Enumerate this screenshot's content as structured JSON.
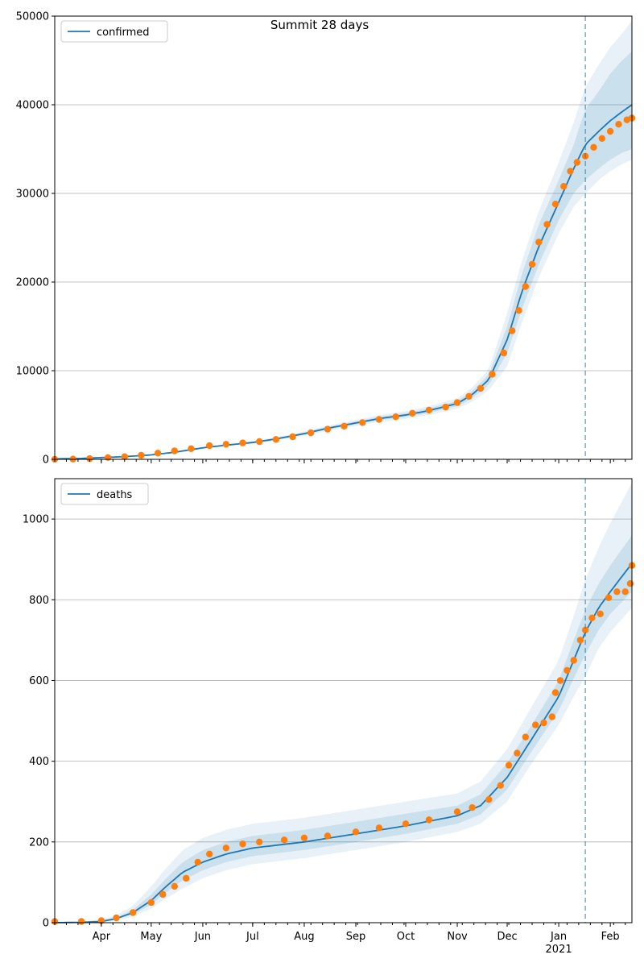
{
  "suptitle": "Summit 28 days",
  "colors": {
    "fit_line": "#1f77b4",
    "band": "#1f77b4",
    "observed": "#ff7f0e",
    "grid": "#b0b0b0",
    "forecast_divider": "#1f77b4"
  },
  "x_axis": {
    "start": "2020-03-04",
    "end": "2021-02-14",
    "forecast_start": "2021-01-17",
    "month_ticks": [
      {
        "date": "2020-04-01",
        "label": "Apr",
        "sublabel": ""
      },
      {
        "date": "2020-05-01",
        "label": "May",
        "sublabel": ""
      },
      {
        "date": "2020-06-01",
        "label": "Jun",
        "sublabel": ""
      },
      {
        "date": "2020-07-01",
        "label": "Jul",
        "sublabel": ""
      },
      {
        "date": "2020-08-01",
        "label": "Aug",
        "sublabel": ""
      },
      {
        "date": "2020-09-01",
        "label": "Sep",
        "sublabel": ""
      },
      {
        "date": "2020-10-01",
        "label": "Oct",
        "sublabel": ""
      },
      {
        "date": "2020-11-01",
        "label": "Nov",
        "sublabel": ""
      },
      {
        "date": "2020-12-01",
        "label": "Dec",
        "sublabel": ""
      },
      {
        "date": "2021-01-01",
        "label": "Jan",
        "sublabel": "2021"
      },
      {
        "date": "2021-02-01",
        "label": "Feb",
        "sublabel": ""
      }
    ]
  },
  "chart_data": [
    {
      "type": "line",
      "legend": [
        "confirmed"
      ],
      "legend_position": "upper-left",
      "grid": "y",
      "ylim": [
        0,
        50000
      ],
      "yticks": [
        0,
        10000,
        20000,
        30000,
        40000,
        50000
      ],
      "series": [
        {
          "name": "confirmed",
          "fit": {
            "dates": [
              "2020-03-04",
              "2020-03-20",
              "2020-04-01",
              "2020-04-15",
              "2020-05-01",
              "2020-05-15",
              "2020-06-01",
              "2020-06-15",
              "2020-07-01",
              "2020-07-15",
              "2020-08-01",
              "2020-08-15",
              "2020-09-01",
              "2020-09-15",
              "2020-10-01",
              "2020-10-15",
              "2020-11-01",
              "2020-11-10",
              "2020-11-20",
              "2020-12-01",
              "2020-12-10",
              "2020-12-20",
              "2021-01-01",
              "2021-01-10",
              "2021-01-17",
              "2021-01-25",
              "2021-02-01",
              "2021-02-08",
              "2021-02-14"
            ],
            "values": [
              50,
              100,
              200,
              300,
              500,
              800,
              1300,
              1600,
              1900,
              2300,
              2900,
              3500,
              4100,
              4600,
              5000,
              5500,
              6300,
              7300,
              9000,
              13500,
              19000,
              24000,
              29000,
              32800,
              35500,
              37000,
              38200,
              39200,
              40000
            ],
            "bands": [
              {
                "lower": [
                  50,
                  100,
                  200,
                  300,
                  480,
                  770,
                  1250,
                  1540,
                  1830,
                  2200,
                  2780,
                  3350,
                  3930,
                  4400,
                  4780,
                  5250,
                  6000,
                  6900,
                  8400,
                  12000,
                  17000,
                  22000,
                  27000,
                  30000,
                  31500,
                  32800,
                  33800,
                  34600,
                  35000
                ],
                "upper": [
                  50,
                  100,
                  200,
                  300,
                  520,
                  830,
                  1350,
                  1660,
                  1970,
                  2400,
                  3020,
                  3650,
                  4270,
                  4800,
                  5220,
                  5750,
                  6600,
                  7700,
                  9600,
                  15000,
                  21000,
                  26500,
                  31500,
                  35500,
                  39500,
                  41500,
                  43500,
                  45000,
                  46000
                ]
              },
              {
                "lower": [
                  50,
                  100,
                  200,
                  300,
                  460,
                  740,
                  1200,
                  1480,
                  1760,
                  2100,
                  2660,
                  3200,
                  3760,
                  4200,
                  4560,
                  5000,
                  5700,
                  6500,
                  7800,
                  10500,
                  15500,
                  20500,
                  25500,
                  28500,
                  30000,
                  31500,
                  32500,
                  33300,
                  33800
                ],
                "upper": [
                  50,
                  100,
                  200,
                  300,
                  540,
                  860,
                  1400,
                  1720,
                  2040,
                  2500,
                  3140,
                  3800,
                  4440,
                  5000,
                  5440,
                  6000,
                  6900,
                  8100,
                  10200,
                  16500,
                  22500,
                  28000,
                  33500,
                  38000,
                  42000,
                  44500,
                  46500,
                  48000,
                  49500
                ]
              }
            ]
          },
          "observed": {
            "dates": [
              "2020-03-04",
              "2020-03-15",
              "2020-03-25",
              "2020-04-05",
              "2020-04-15",
              "2020-04-25",
              "2020-05-05",
              "2020-05-15",
              "2020-05-25",
              "2020-06-05",
              "2020-06-15",
              "2020-06-25",
              "2020-07-05",
              "2020-07-15",
              "2020-07-25",
              "2020-08-05",
              "2020-08-15",
              "2020-08-25",
              "2020-09-05",
              "2020-09-15",
              "2020-09-25",
              "2020-10-05",
              "2020-10-15",
              "2020-10-25",
              "2020-11-01",
              "2020-11-08",
              "2020-11-15",
              "2020-11-22",
              "2020-11-29",
              "2020-12-04",
              "2020-12-08",
              "2020-12-12",
              "2020-12-16",
              "2020-12-20",
              "2020-12-25",
              "2020-12-30",
              "2021-01-04",
              "2021-01-08",
              "2021-01-12",
              "2021-01-17",
              "2021-01-22",
              "2021-01-27",
              "2021-02-01",
              "2021-02-06",
              "2021-02-11",
              "2021-02-14"
            ],
            "values": [
              10,
              30,
              80,
              200,
              300,
              450,
              700,
              950,
              1200,
              1550,
              1700,
              1850,
              2000,
              2250,
              2550,
              3000,
              3400,
              3750,
              4150,
              4500,
              4800,
              5200,
              5550,
              5900,
              6400,
              7100,
              8000,
              9600,
              12000,
              14500,
              16800,
              19500,
              22000,
              24500,
              26500,
              28800,
              30800,
              32500,
              33500,
              34200,
              35200,
              36200,
              37000,
              37800,
              38300,
              38500
            ]
          }
        }
      ]
    },
    {
      "type": "line",
      "legend": [
        "deaths"
      ],
      "legend_position": "upper-left",
      "grid": "y",
      "ylim": [
        0,
        1100
      ],
      "yticks": [
        0,
        200,
        400,
        600,
        800,
        1000
      ],
      "series": [
        {
          "name": "deaths",
          "fit": {
            "dates": [
              "2020-03-04",
              "2020-03-20",
              "2020-04-01",
              "2020-04-10",
              "2020-04-20",
              "2020-05-01",
              "2020-05-10",
              "2020-05-20",
              "2020-06-01",
              "2020-06-15",
              "2020-07-01",
              "2020-08-01",
              "2020-09-01",
              "2020-10-01",
              "2020-11-01",
              "2020-11-15",
              "2020-12-01",
              "2020-12-15",
              "2021-01-01",
              "2021-01-10",
              "2021-01-17",
              "2021-01-25",
              "2021-02-01",
              "2021-02-14"
            ],
            "values": [
              0,
              1,
              3,
              10,
              25,
              55,
              90,
              125,
              150,
              170,
              185,
              200,
              220,
              240,
              265,
              290,
              360,
              450,
              560,
              650,
              720,
              780,
              820,
              890
            ],
            "bands": [
              {
                "lower": [
                  0,
                  1,
                  2,
                  8,
                  20,
                  45,
                  75,
                  105,
                  130,
                  150,
                  165,
                  180,
                  200,
                  220,
                  245,
                  268,
                  330,
                  420,
                  525,
                  605,
                  665,
                  725,
                  765,
                  820
                ],
                "upper": [
                  0,
                  2,
                  5,
                  13,
                  32,
                  70,
                  110,
                  150,
                  180,
                  200,
                  215,
                  230,
                  250,
                  270,
                  290,
                  318,
                  395,
                  485,
                  600,
                  700,
                  775,
                  840,
                  885,
                  960
                ]
              },
              {
                "lower": [
                  0,
                  0,
                  1,
                  5,
                  15,
                  35,
                  60,
                  85,
                  110,
                  130,
                  145,
                  160,
                  180,
                  200,
                  225,
                  245,
                  300,
                  390,
                  490,
                  560,
                  610,
                  680,
                  720,
                  780
                ],
                "upper": [
                  0,
                  3,
                  8,
                  18,
                  42,
                  90,
                  135,
                  180,
                  210,
                  230,
                  245,
                  260,
                  280,
                  300,
                  320,
                  350,
                  430,
                  530,
                  650,
                  760,
                  850,
                  930,
                  990,
                  1090
                ]
              }
            ]
          },
          "observed": {
            "dates": [
              "2020-03-04",
              "2020-03-20",
              "2020-04-01",
              "2020-04-10",
              "2020-04-20",
              "2020-05-01",
              "2020-05-08",
              "2020-05-15",
              "2020-05-22",
              "2020-05-29",
              "2020-06-05",
              "2020-06-15",
              "2020-06-25",
              "2020-07-05",
              "2020-07-20",
              "2020-08-01",
              "2020-08-15",
              "2020-09-01",
              "2020-09-15",
              "2020-10-01",
              "2020-10-15",
              "2020-11-01",
              "2020-11-10",
              "2020-11-20",
              "2020-11-27",
              "2020-12-02",
              "2020-12-07",
              "2020-12-12",
              "2020-12-18",
              "2020-12-23",
              "2020-12-28",
              "2020-12-30",
              "2021-01-02",
              "2021-01-06",
              "2021-01-10",
              "2021-01-14",
              "2021-01-17",
              "2021-01-21",
              "2021-01-26",
              "2021-01-31",
              "2021-02-05",
              "2021-02-10",
              "2021-02-13",
              "2021-02-14"
            ],
            "values": [
              3,
              3,
              5,
              12,
              25,
              50,
              70,
              90,
              110,
              150,
              170,
              185,
              195,
              200,
              205,
              210,
              215,
              225,
              235,
              245,
              255,
              275,
              285,
              305,
              340,
              390,
              420,
              460,
              490,
              495,
              510,
              570,
              600,
              625,
              650,
              700,
              725,
              755,
              765,
              805,
              820,
              820,
              840,
              885
            ]
          }
        }
      ]
    }
  ]
}
